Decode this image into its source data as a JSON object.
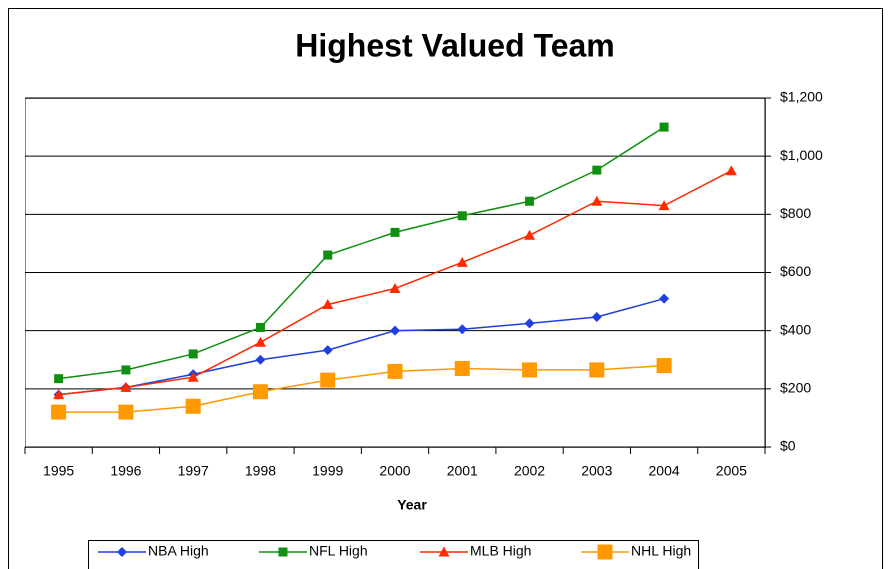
{
  "chart_data": {
    "type": "line",
    "title": "Highest Valued Team",
    "x_label": "Year",
    "categories": [
      "1995",
      "1996",
      "1997",
      "1998",
      "1999",
      "2000",
      "2001",
      "2002",
      "2003",
      "2004",
      "2005"
    ],
    "series": [
      {
        "name": "NBA High",
        "color": "#1f3fe0",
        "marker": "diamond",
        "values": [
          180,
          205,
          250,
          300,
          333,
          400,
          405,
          425,
          447,
          510,
          null
        ]
      },
      {
        "name": "NFL High",
        "color": "#109010",
        "marker": "square",
        "values": [
          235,
          265,
          320,
          411,
          660,
          738,
          795,
          845,
          952,
          1100,
          null
        ]
      },
      {
        "name": "MLB High",
        "color": "#ff2a00",
        "marker": "triangle",
        "values": [
          180,
          205,
          240,
          360,
          490,
          545,
          635,
          728,
          845,
          830,
          950
        ]
      },
      {
        "name": "NHL High",
        "color": "#ff9900",
        "marker": "big-square",
        "values": [
          120,
          120,
          140,
          190,
          230,
          260,
          270,
          265,
          265,
          280,
          null
        ]
      }
    ],
    "ylim": [
      0,
      1200
    ],
    "yticks": [
      {
        "value": 0,
        "label": "$0"
      },
      {
        "value": 200,
        "label": "$200"
      },
      {
        "value": 400,
        "label": "$400"
      },
      {
        "value": 600,
        "label": "$600"
      },
      {
        "value": 800,
        "label": "$800"
      },
      {
        "value": 1000,
        "label": "$1,000"
      },
      {
        "value": 1200,
        "label": "$1,200"
      }
    ],
    "grid": true,
    "y_axis_side": "right",
    "legend": "bottom"
  }
}
